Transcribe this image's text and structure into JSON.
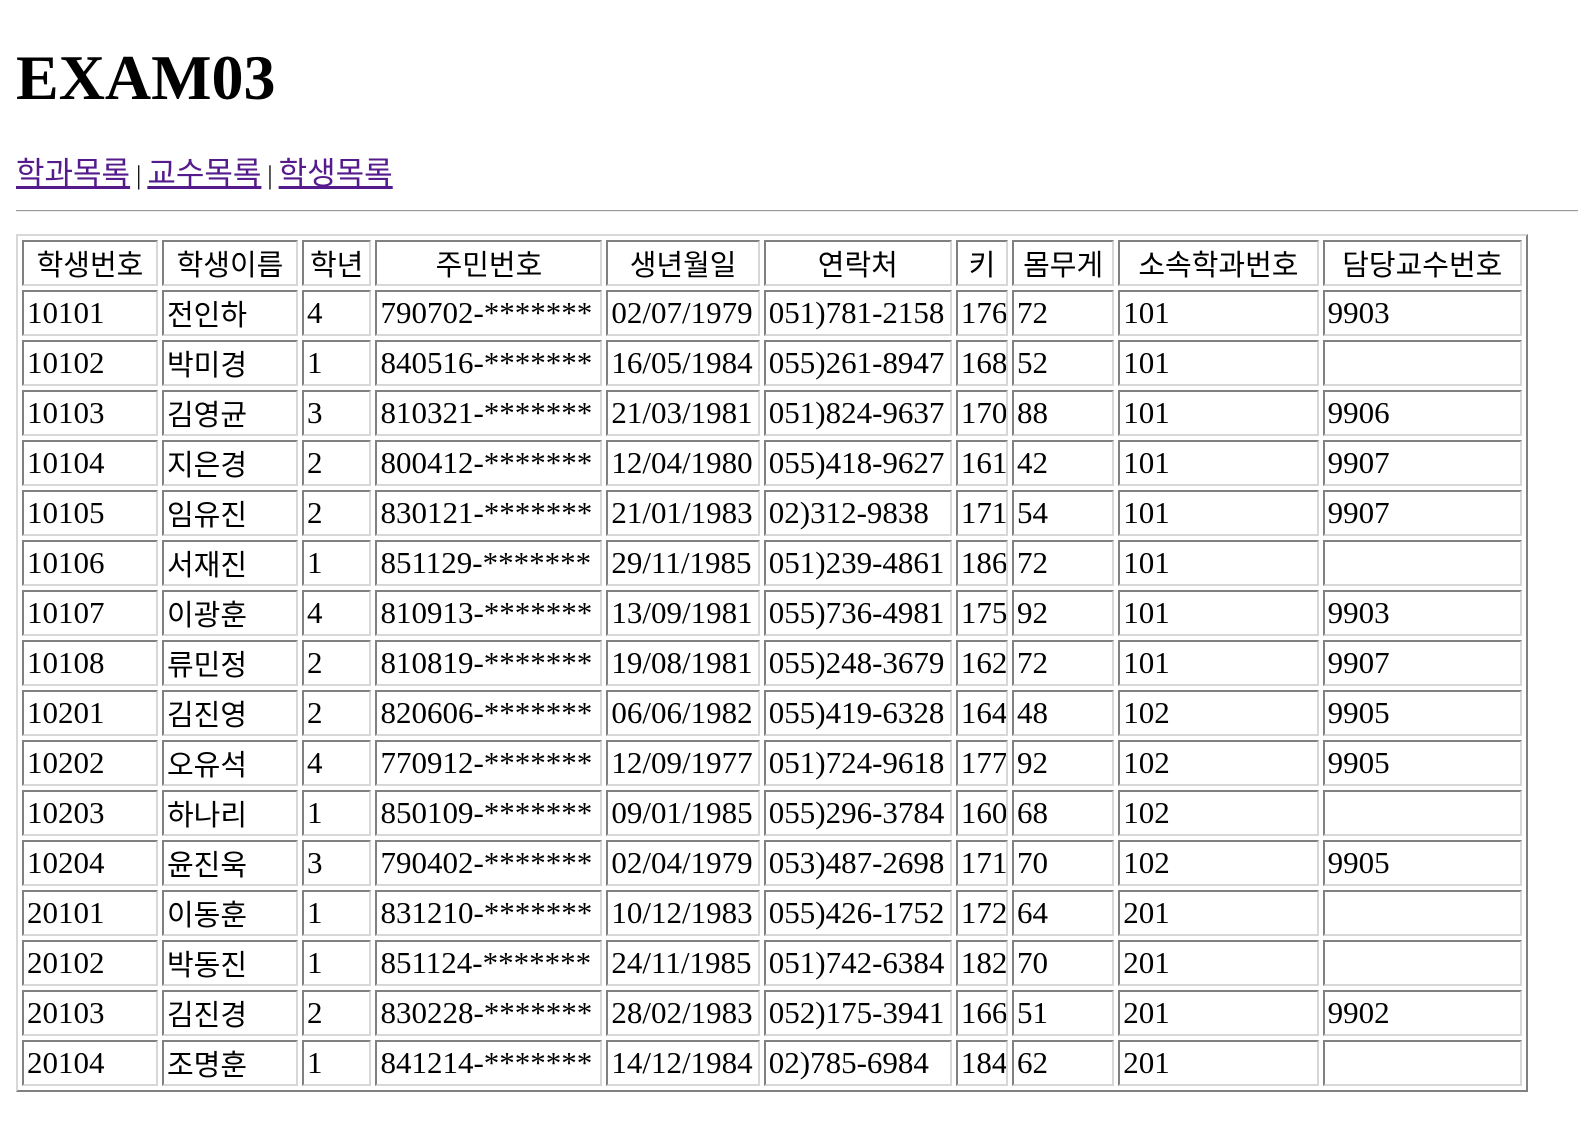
{
  "page": {
    "title": "EXAM03"
  },
  "nav": {
    "links": [
      {
        "label": "학과목록"
      },
      {
        "label": "교수목록"
      },
      {
        "label": "학생목록"
      }
    ],
    "separator": "|"
  },
  "table": {
    "headers": [
      "학생번호",
      "학생이름",
      "학년",
      "주민번호",
      "생년월일",
      "연락처",
      "키",
      "몸무게",
      "소속학과번호",
      "담당교수번호"
    ],
    "rows": [
      [
        "10101",
        "전인하",
        "4",
        "790702-*******",
        "02/07/1979",
        "051)781-2158",
        "176",
        "72",
        "101",
        "9903"
      ],
      [
        "10102",
        "박미경",
        "1",
        "840516-*******",
        "16/05/1984",
        "055)261-8947",
        "168",
        "52",
        "101",
        ""
      ],
      [
        "10103",
        "김영균",
        "3",
        "810321-*******",
        "21/03/1981",
        "051)824-9637",
        "170",
        "88",
        "101",
        "9906"
      ],
      [
        "10104",
        "지은경",
        "2",
        "800412-*******",
        "12/04/1980",
        "055)418-9627",
        "161",
        "42",
        "101",
        "9907"
      ],
      [
        "10105",
        "임유진",
        "2",
        "830121-*******",
        "21/01/1983",
        "02)312-9838",
        "171",
        "54",
        "101",
        "9907"
      ],
      [
        "10106",
        "서재진",
        "1",
        "851129-*******",
        "29/11/1985",
        "051)239-4861",
        "186",
        "72",
        "101",
        ""
      ],
      [
        "10107",
        "이광훈",
        "4",
        "810913-*******",
        "13/09/1981",
        "055)736-4981",
        "175",
        "92",
        "101",
        "9903"
      ],
      [
        "10108",
        "류민정",
        "2",
        "810819-*******",
        "19/08/1981",
        "055)248-3679",
        "162",
        "72",
        "101",
        "9907"
      ],
      [
        "10201",
        "김진영",
        "2",
        "820606-*******",
        "06/06/1982",
        "055)419-6328",
        "164",
        "48",
        "102",
        "9905"
      ],
      [
        "10202",
        "오유석",
        "4",
        "770912-*******",
        "12/09/1977",
        "051)724-9618",
        "177",
        "92",
        "102",
        "9905"
      ],
      [
        "10203",
        "하나리",
        "1",
        "850109-*******",
        "09/01/1985",
        "055)296-3784",
        "160",
        "68",
        "102",
        ""
      ],
      [
        "10204",
        "윤진욱",
        "3",
        "790402-*******",
        "02/04/1979",
        "053)487-2698",
        "171",
        "70",
        "102",
        "9905"
      ],
      [
        "20101",
        "이동훈",
        "1",
        "831210-*******",
        "10/12/1983",
        "055)426-1752",
        "172",
        "64",
        "201",
        ""
      ],
      [
        "20102",
        "박동진",
        "1",
        "851124-*******",
        "24/11/1985",
        "051)742-6384",
        "182",
        "70",
        "201",
        ""
      ],
      [
        "20103",
        "김진경",
        "2",
        "830228-*******",
        "28/02/1983",
        "052)175-3941",
        "166",
        "51",
        "201",
        "9902"
      ],
      [
        "20104",
        "조명훈",
        "1",
        "841214-*******",
        "14/12/1984",
        "02)785-6984",
        "184",
        "62",
        "201",
        ""
      ]
    ]
  },
  "colors": {
    "link": "#551A8B",
    "text": "#000000",
    "background": "#FFFFFF"
  }
}
